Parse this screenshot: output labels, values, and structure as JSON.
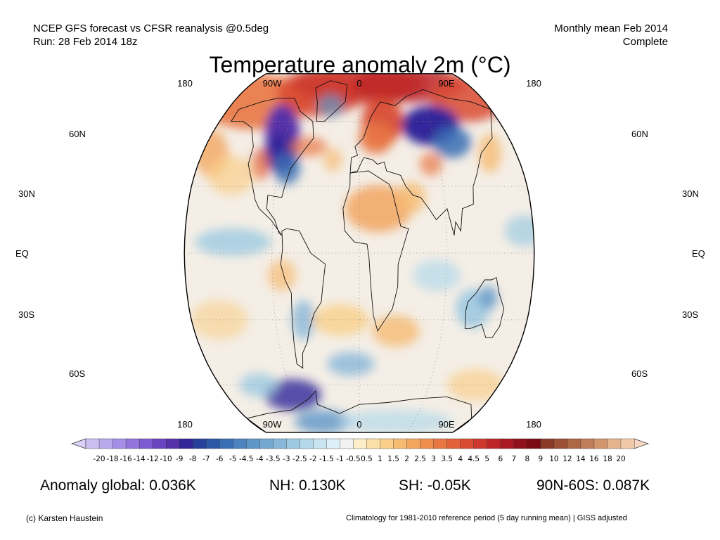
{
  "header": {
    "left_line1": "NCEP GFS forecast vs CFSR reanalysis @0.5deg",
    "left_line2": "Run: 28 Feb 2014 18z",
    "right_line1": "Monthly mean Feb 2014",
    "right_line2": "Complete"
  },
  "title": "Temperature anomaly 2m (°C)",
  "map": {
    "projection": "Robinson",
    "central_meridian": 0,
    "lon_labels_top": [
      "180",
      "90W",
      "0",
      "90E",
      "180"
    ],
    "lon_labels_bottom": [
      "180",
      "90W",
      "0",
      "90E",
      "180"
    ],
    "lat_labels_left": [
      "60N",
      "30N",
      "EQ",
      "30S",
      "60S"
    ],
    "lat_labels_right": [
      "60N",
      "30N",
      "EQ",
      "30S",
      "60S"
    ]
  },
  "colorbar": {
    "tick_labels": [
      "-20",
      "-18",
      "-16",
      "-14",
      "-12",
      "-10",
      "-9",
      "-8",
      "-7",
      "-6",
      "-5",
      "-4.5",
      "-4",
      "-3.5",
      "-3",
      "-2.5",
      "-2",
      "-1.5",
      "-1",
      "-0.5",
      "0.5",
      "1",
      "1.5",
      "2",
      "2.5",
      "3",
      "3.5",
      "4",
      "4.5",
      "5",
      "6",
      "7",
      "8",
      "9",
      "10",
      "12",
      "14",
      "16",
      "18",
      "20"
    ],
    "colors": [
      "#c9bff0",
      "#b8a8ec",
      "#a58fe6",
      "#9274dd",
      "#7c5ad1",
      "#6a43c0",
      "#5632a8",
      "#31259a",
      "#263f98",
      "#2d57a6",
      "#3a6eb4",
      "#4d83bf",
      "#5f96c8",
      "#73a7d1",
      "#88b8d9",
      "#9ecae1",
      "#b3d8ea",
      "#c8e4f1",
      "#ddeff8",
      "#f2f2f2",
      "#fbeec8",
      "#fbe0a8",
      "#f9cf8a",
      "#f6bb73",
      "#f2a660",
      "#ee8f50",
      "#e97744",
      "#e3613a",
      "#d94b33",
      "#cd372d",
      "#be2428",
      "#a81921",
      "#8f1119",
      "#7a0b13",
      "#8b3a2a",
      "#9c5036",
      "#ae6745",
      "#c07e58",
      "#d2966c",
      "#e4b38e",
      "#f0c9a8"
    ]
  },
  "stats": {
    "global": "Anomaly global: 0.036K",
    "nh": "NH: 0.130K",
    "sh": "SH: -0.05K",
    "arctic": "90N-60S: 0.087K"
  },
  "footer": {
    "left": "(c) Karsten Haustein",
    "right": "Climatology for 1981-2010 reference period (5 day running mean) | GISS adjusted"
  }
}
